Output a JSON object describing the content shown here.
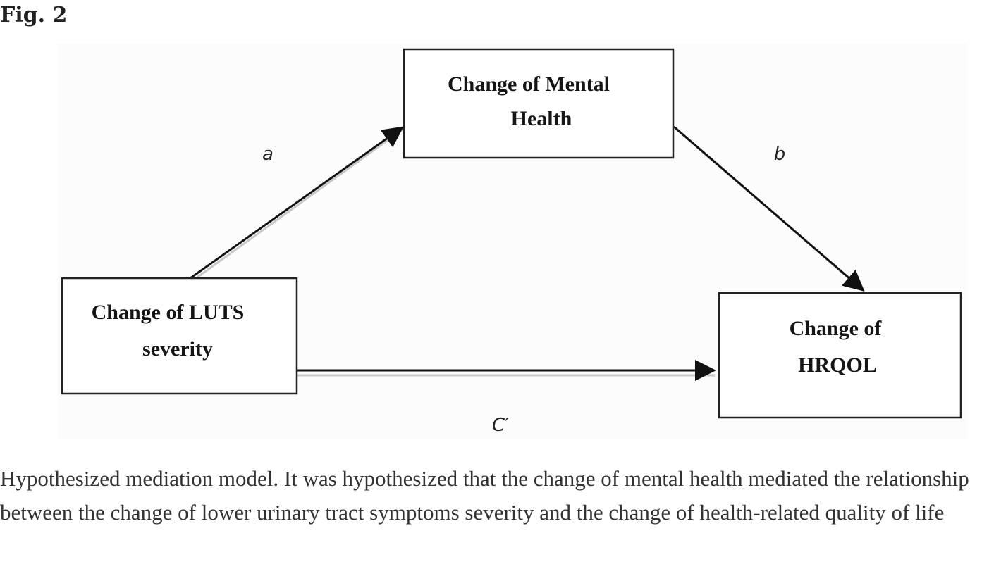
{
  "figure": {
    "label": "Fig. 2",
    "caption": "Hypothesized mediation model. It was hypothesized that the change of mental health mediated the relationship between the change of lower urinary tract symptoms severity and the change of health-related quality of life"
  },
  "diagram": {
    "nodes": {
      "mediator": {
        "line1": "Change of Mental",
        "line2": "Health"
      },
      "predictor": {
        "line1": "Change of LUTS",
        "line2": "severity"
      },
      "outcome": {
        "line1": "Change of",
        "line2": "HRQOL"
      }
    },
    "paths": {
      "a": "a",
      "b": "b",
      "c_prime": "C′"
    }
  }
}
